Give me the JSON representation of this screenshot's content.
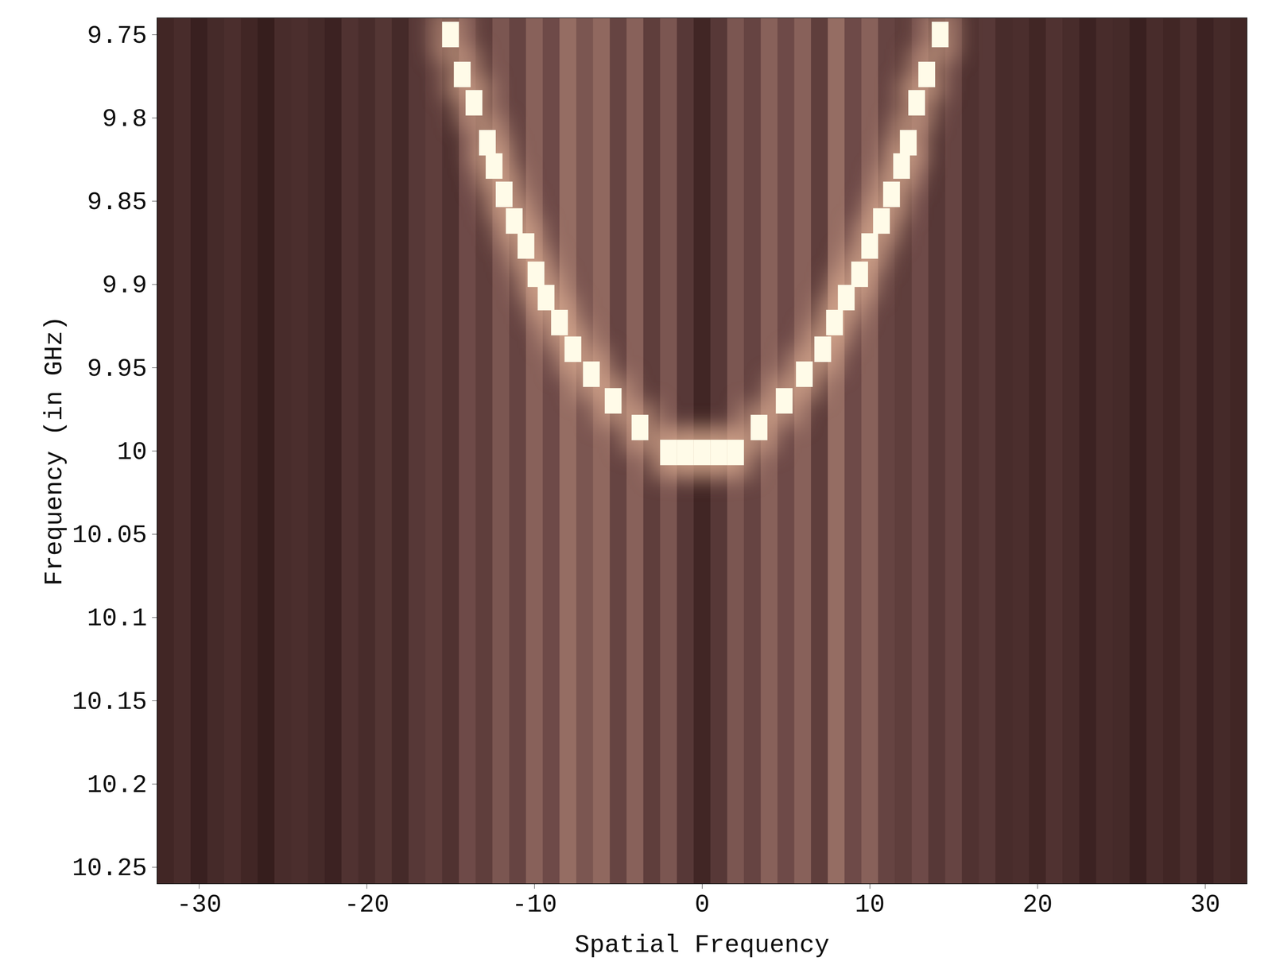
{
  "chart_data": {
    "type": "heatmap",
    "x_label": "Spatial Frequency",
    "y_label": "Frequency (in GHz)",
    "xlim": [
      -32.5,
      32.5
    ],
    "ylim": [
      9.74,
      10.26
    ],
    "xticks": [
      -30,
      -20,
      -10,
      0,
      10,
      20,
      30
    ],
    "yticks": [
      9.75,
      9.8,
      9.85,
      9.9,
      9.95,
      10,
      10.05,
      10.1,
      10.15,
      10.2,
      10.25
    ],
    "zlim": [
      0,
      1
    ],
    "columns": {
      "x": [
        -32,
        -31,
        -30,
        -29,
        -28,
        -27,
        -26,
        -25,
        -24,
        -23,
        -22,
        -21,
        -20,
        -19,
        -18,
        -17,
        -16,
        -15,
        -14,
        -13,
        -12,
        -11,
        -10,
        -9,
        -8,
        -7,
        -6,
        -5,
        -4,
        -3,
        -2,
        -1,
        0,
        1,
        2,
        3,
        4,
        5,
        6,
        7,
        8,
        9,
        10,
        11,
        12,
        13,
        14,
        15,
        16,
        17,
        18,
        19,
        20,
        21,
        22,
        23,
        24,
        25,
        26,
        27,
        28,
        29,
        30,
        31,
        32
      ],
      "values": [
        0.15,
        0.2,
        0.1,
        0.18,
        0.22,
        0.15,
        0.08,
        0.2,
        0.22,
        0.18,
        0.12,
        0.25,
        0.2,
        0.28,
        0.18,
        0.3,
        0.35,
        0.25,
        0.45,
        0.35,
        0.5,
        0.4,
        0.55,
        0.45,
        0.6,
        0.5,
        0.58,
        0.4,
        0.55,
        0.35,
        0.5,
        0.3,
        0.15,
        0.3,
        0.5,
        0.4,
        0.55,
        0.45,
        0.55,
        0.35,
        0.6,
        0.45,
        0.55,
        0.4,
        0.35,
        0.45,
        0.3,
        0.4,
        0.25,
        0.3,
        0.2,
        0.22,
        0.15,
        0.25,
        0.2,
        0.12,
        0.2,
        0.18,
        0.1,
        0.2,
        0.15,
        0.22,
        0.12,
        0.18,
        0.15
      ]
    },
    "ridge": {
      "x": [
        -15,
        -14.3,
        -13.6,
        -12.8,
        -12.4,
        -11.8,
        -11.2,
        -10.5,
        -9.9,
        -9.3,
        -8.5,
        -7.7,
        -6.6,
        -5.3,
        -3.7,
        -2,
        -1,
        0,
        1,
        2,
        3.4,
        4.9,
        6.1,
        7.2,
        7.9,
        8.6,
        9.4,
        10,
        10.7,
        11.3,
        11.9,
        12.3,
        12.8,
        13.4,
        14.2
      ],
      "y": [
        9.75,
        9.774,
        9.791,
        9.815,
        9.829,
        9.846,
        9.862,
        9.877,
        9.894,
        9.908,
        9.923,
        9.939,
        9.954,
        9.97,
        9.986,
        10.001,
        10.001,
        10.001,
        10.001,
        10.001,
        9.986,
        9.97,
        9.954,
        9.939,
        9.923,
        9.908,
        9.894,
        9.877,
        9.862,
        9.846,
        9.829,
        9.815,
        9.791,
        9.774,
        9.75
      ]
    }
  }
}
